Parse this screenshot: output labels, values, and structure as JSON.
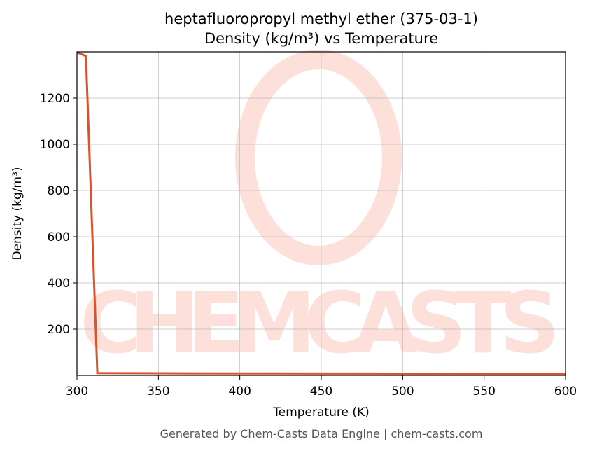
{
  "chart_data": {
    "type": "line",
    "title": "heptafluoropropyl methyl ether (375-03-1)",
    "subtitle": "Density (kg/m³) vs Temperature",
    "x_label": "Temperature (K)",
    "y_label": "Density (kg/m³)",
    "footer": "Generated by Chem-Casts Data Engine | chem-casts.com",
    "watermark": "CHEMCASTS",
    "x": [
      300,
      305.5,
      312.5,
      350,
      400,
      450,
      500,
      550,
      600
    ],
    "series": [
      {
        "name": "Density",
        "color": "#d9532b",
        "values": [
          1398,
          1382,
          10,
          9,
          8.5,
          8,
          7.5,
          7,
          6.5
        ]
      }
    ],
    "xlim": [
      300,
      600
    ],
    "ylim": [
      0,
      1400
    ],
    "xticks": [
      300,
      350,
      400,
      450,
      500,
      550,
      600
    ],
    "yticks": [
      200,
      400,
      600,
      800,
      1000,
      1200
    ],
    "grid": true
  }
}
